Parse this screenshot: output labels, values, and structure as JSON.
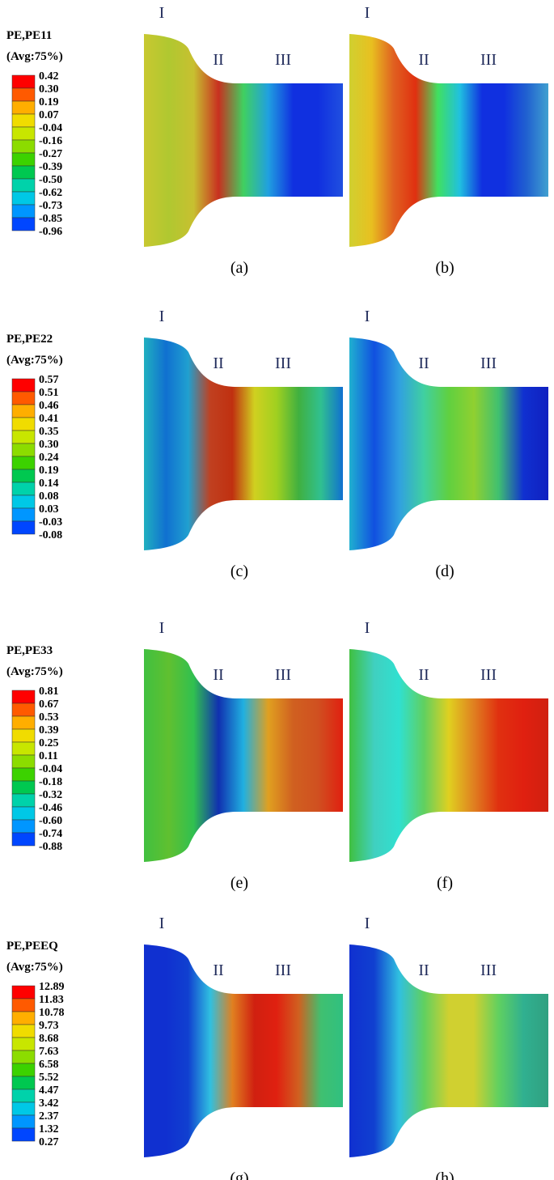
{
  "rows": [
    {
      "legend": {
        "title": "PE,PE11",
        "subtitle": "(Avg:75%)",
        "labels": [
          "0.42",
          "0.30",
          "0.19",
          "0.07",
          "-0.04",
          "-0.16",
          "-0.27",
          "-0.39",
          "-0.50",
          "-0.62",
          "-0.73",
          "-0.85",
          "-0.96"
        ]
      },
      "panels": [
        {
          "caption": "(a)",
          "regions": [
            "I",
            "II",
            "III"
          ]
        },
        {
          "caption": "(b)",
          "regions": [
            "I",
            "II",
            "III"
          ]
        }
      ]
    },
    {
      "legend": {
        "title": "PE,PE22",
        "subtitle": "(Avg:75%)",
        "labels": [
          "0.57",
          "0.51",
          "0.46",
          "0.41",
          "0.35",
          "0.30",
          "0.24",
          "0.19",
          "0.14",
          "0.08",
          "0.03",
          "-0.03",
          "-0.08"
        ]
      },
      "panels": [
        {
          "caption": "(c)",
          "regions": [
            "I",
            "II",
            "III"
          ]
        },
        {
          "caption": "(d)",
          "regions": [
            "I",
            "II",
            "III"
          ]
        }
      ]
    },
    {
      "legend": {
        "title": "PE,PE33",
        "subtitle": "(Avg:75%)",
        "labels": [
          "0.81",
          "0.67",
          "0.53",
          "0.39",
          "0.25",
          "0.11",
          "-0.04",
          "-0.18",
          "-0.32",
          "-0.46",
          "-0.60",
          "-0.74",
          "-0.88"
        ]
      },
      "panels": [
        {
          "caption": "(e)",
          "regions": [
            "I",
            "II",
            "III"
          ]
        },
        {
          "caption": "(f)",
          "regions": [
            "I",
            "II",
            "III"
          ]
        }
      ]
    },
    {
      "legend": {
        "title": "PE,PEEQ",
        "subtitle": "(Avg:75%)",
        "labels": [
          "12.89",
          "11.83",
          "10.78",
          "9.73",
          "8.68",
          "7.63",
          "6.58",
          "5.52",
          "4.47",
          "3.42",
          "2.37",
          "1.32",
          "0.27"
        ]
      },
      "panels": [
        {
          "caption": "(g)",
          "regions": [
            "I",
            "II",
            "III"
          ]
        },
        {
          "caption": "(h)",
          "regions": [
            "I",
            "II",
            "III"
          ]
        }
      ]
    }
  ]
}
